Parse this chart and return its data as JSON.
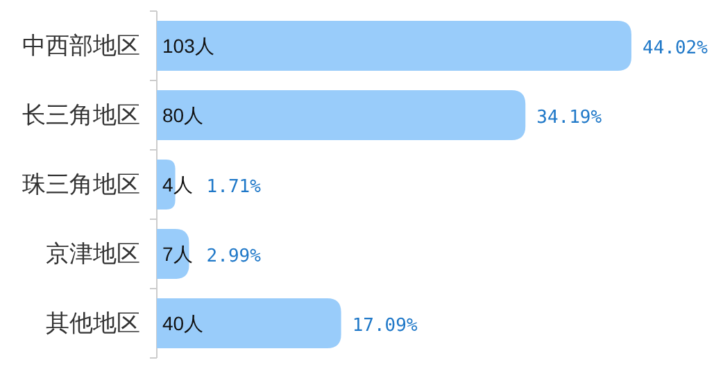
{
  "chart_data": {
    "type": "bar",
    "orientation": "horizontal",
    "categories": [
      "中西部地区",
      "长三角地区",
      "珠三角地区",
      "京津地区",
      "其他地区"
    ],
    "values": [
      103,
      80,
      4,
      7,
      40
    ],
    "color": "#99ccfa",
    "value_labels": [
      "103人",
      "80人",
      "4人",
      "7人",
      "40人"
    ],
    "annotations": [
      "44.02%",
      "34.19%",
      "1.71%",
      "2.99%",
      "17.09%"
    ]
  }
}
